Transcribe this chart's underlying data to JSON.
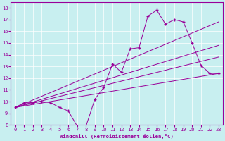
{
  "xlabel": "Windchill (Refroidissement éolien,°C)",
  "background_color": "#c8eff0",
  "grid_color": "#ffffff",
  "line_color": "#990099",
  "xlim": [
    -0.5,
    23.5
  ],
  "ylim": [
    8,
    18.5
  ],
  "xticks": [
    0,
    1,
    2,
    3,
    4,
    5,
    6,
    7,
    8,
    9,
    10,
    11,
    12,
    13,
    14,
    15,
    16,
    17,
    18,
    19,
    20,
    21,
    22,
    23
  ],
  "yticks": [
    8,
    9,
    10,
    11,
    12,
    13,
    14,
    15,
    16,
    17,
    18
  ],
  "data_x": [
    0,
    1,
    2,
    3,
    4,
    5,
    6,
    7,
    8,
    9,
    10,
    11,
    12,
    13,
    14,
    15,
    16,
    17,
    18,
    19,
    20,
    21,
    22,
    23
  ],
  "data_y": [
    9.5,
    9.9,
    9.9,
    10.0,
    9.9,
    9.5,
    9.2,
    7.9,
    7.9,
    10.2,
    11.2,
    13.2,
    12.5,
    14.5,
    14.6,
    17.3,
    17.8,
    16.6,
    17.0,
    16.8,
    15.0,
    13.1,
    12.4,
    12.4
  ],
  "straight_lines": [
    {
      "x": [
        0,
        23
      ],
      "y": [
        9.5,
        12.4
      ]
    },
    {
      "x": [
        0,
        23
      ],
      "y": [
        9.5,
        12.4
      ]
    },
    {
      "x": [
        0,
        23
      ],
      "y": [
        9.5,
        14.8
      ]
    },
    {
      "x": [
        0,
        23
      ],
      "y": [
        9.5,
        16.8
      ]
    }
  ]
}
